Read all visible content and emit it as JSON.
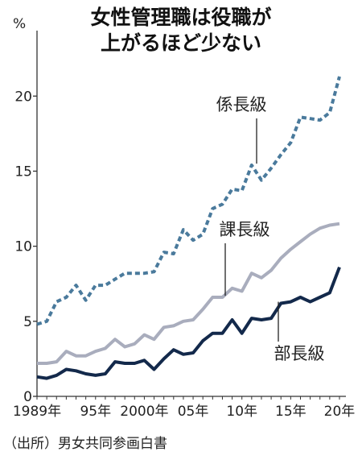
{
  "chart_data": {
    "type": "line",
    "title": [
      "女性管理職は役職が",
      "上がるほど少ない"
    ],
    "unit": "%",
    "ylim": [
      0,
      22
    ],
    "yticks": [
      0,
      5,
      10,
      15,
      20
    ],
    "xlim": [
      1989,
      2020
    ],
    "xtick_labels": [
      {
        "x": 1989,
        "label": "1989年"
      },
      {
        "x": 1995,
        "label": "95年"
      },
      {
        "x": 2000,
        "label": "2000年"
      },
      {
        "x": 2005,
        "label": "05年"
      },
      {
        "x": 2010,
        "label": "10年"
      },
      {
        "x": 2015,
        "label": "15年"
      },
      {
        "x": 2020,
        "label": "20年"
      }
    ],
    "x": [
      1989,
      1990,
      1991,
      1992,
      1993,
      1994,
      1995,
      1996,
      1997,
      1998,
      1999,
      2000,
      2001,
      2002,
      2003,
      2004,
      2005,
      2006,
      2007,
      2008,
      2009,
      2010,
      2011,
      2012,
      2013,
      2014,
      2015,
      2016,
      2017,
      2018,
      2019,
      2020
    ],
    "series": [
      {
        "name": "係長級",
        "color": "#4a7a9c",
        "style": "dashed",
        "values": [
          4.8,
          5.0,
          6.3,
          6.6,
          7.4,
          6.4,
          7.4,
          7.4,
          7.8,
          8.2,
          8.2,
          8.2,
          8.3,
          9.6,
          9.5,
          11.1,
          10.4,
          10.8,
          12.5,
          12.8,
          13.8,
          13.7,
          15.4,
          14.4,
          15.2,
          16.1,
          16.9,
          18.6,
          18.5,
          18.4,
          18.9,
          21.3
        ]
      },
      {
        "name": "課長級",
        "color": "#a9adbd",
        "style": "solid",
        "values": [
          2.2,
          2.2,
          2.3,
          3.0,
          2.7,
          2.7,
          3.0,
          3.2,
          3.8,
          3.3,
          3.5,
          4.1,
          3.8,
          4.6,
          4.7,
          5.0,
          5.1,
          5.8,
          6.6,
          6.6,
          7.2,
          7.0,
          8.2,
          7.9,
          8.4,
          9.2,
          9.8,
          10.3,
          10.8,
          11.2,
          11.4,
          11.5
        ]
      },
      {
        "name": "部長級",
        "color": "#13294b",
        "style": "solid",
        "values": [
          1.3,
          1.2,
          1.4,
          1.8,
          1.7,
          1.5,
          1.4,
          1.5,
          2.3,
          2.2,
          2.2,
          2.4,
          1.8,
          2.5,
          3.1,
          2.8,
          2.9,
          3.7,
          4.2,
          4.2,
          5.1,
          4.2,
          5.2,
          5.1,
          5.2,
          6.2,
          6.3,
          6.6,
          6.3,
          6.6,
          6.9,
          8.6
        ]
      }
    ],
    "annotations": [
      {
        "series": 0,
        "label": "係長級"
      },
      {
        "series": 1,
        "label": "課長級"
      },
      {
        "series": 2,
        "label": "部長級"
      }
    ],
    "source": "（出所）男女共同参画白書"
  }
}
